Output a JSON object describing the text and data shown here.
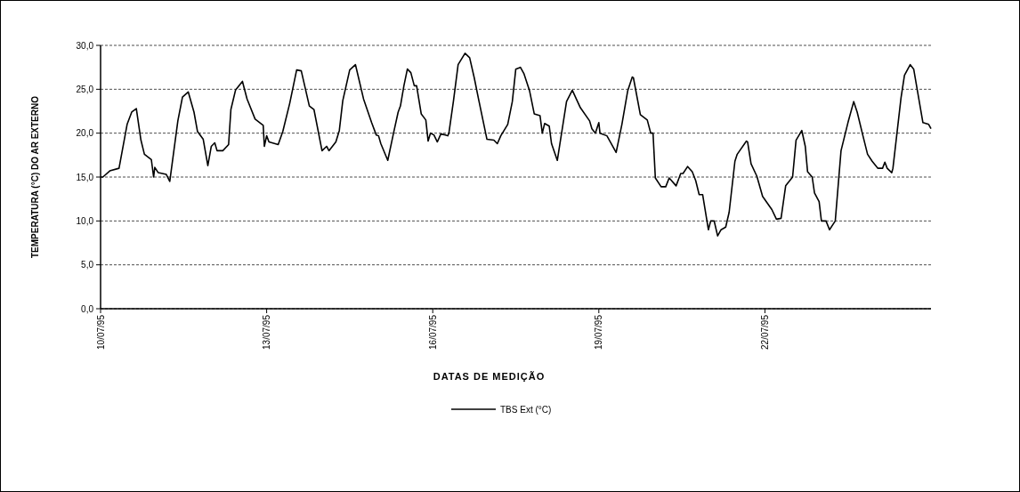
{
  "chart_data": {
    "type": "line",
    "xlabel": "DATAS DE MEDIÇÃO",
    "ylabel": "TEMPERATURA (°C) DO AR EXTERNO",
    "x": [
      "1995-07-10T00:00",
      "1995-07-10T01:00",
      "1995-07-10T04:00",
      "1995-07-10T08:00",
      "1995-07-10T11:30",
      "1995-07-10T13:30",
      "1995-07-10T15:30",
      "1995-07-10T17:30",
      "1995-07-10T19:00",
      "1995-07-10T22:00",
      "1995-07-10T23:00",
      "1995-07-10T23:30",
      "1995-07-11T01:00",
      "1995-07-11T04:30",
      "1995-07-11T06:00",
      "1995-07-11T09:30",
      "1995-07-11T11:30",
      "1995-07-11T14:00",
      "1995-07-11T16:30",
      "1995-07-11T18:00",
      "1995-07-11T20:30",
      "1995-07-11T22:30",
      "1995-07-12T00:00",
      "1995-07-12T01:30",
      "1995-07-12T02:30",
      "1995-07-12T05:00",
      "1995-07-12T07:30",
      "1995-07-12T08:30",
      "1995-07-12T10:30",
      "1995-07-12T13:30",
      "1995-07-12T15:30",
      "1995-07-12T19:00",
      "1995-07-12T22:30",
      "1995-07-12T23:00",
      "1995-07-13T00:00",
      "1995-07-13T01:00",
      "1995-07-13T05:00",
      "1995-07-13T07:00",
      "1995-07-13T10:00",
      "1995-07-13T13:00",
      "1995-07-13T15:00",
      "1995-07-13T18:30",
      "1995-07-13T20:30",
      "1995-07-14T00:00",
      "1995-07-14T02:00",
      "1995-07-14T03:00",
      "1995-07-14T06:00",
      "1995-07-14T07:30",
      "1995-07-14T09:00",
      "1995-07-14T12:00",
      "1995-07-14T14:30",
      "1995-07-14T18:00",
      "1995-07-14T21:30",
      "1995-07-14T23:30",
      "1995-07-15T00:30",
      "1995-07-15T01:30",
      "1995-07-15T04:30",
      "1995-07-15T07:00",
      "1995-07-15T09:00",
      "1995-07-15T10:00",
      "1995-07-15T11:30",
      "1995-07-15T13:00",
      "1995-07-15T14:30",
      "1995-07-15T16:00",
      "1995-07-15T17:00",
      "1995-07-15T19:00",
      "1995-07-15T21:00",
      "1995-07-15T22:00",
      "1995-07-15T23:00",
      "1995-07-16T00:30",
      "1995-07-16T02:00",
      "1995-07-16T03:30",
      "1995-07-16T05:30",
      "1995-07-16T06:30",
      "1995-07-16T07:00",
      "1995-07-16T09:00",
      "1995-07-16T11:00",
      "1995-07-16T14:00",
      "1995-07-16T16:00",
      "1995-07-16T18:00",
      "1995-07-16T20:00",
      "1995-07-16T23:30",
      "1995-07-17T02:30",
      "1995-07-17T04:00",
      "1995-07-17T05:30",
      "1995-07-17T08:30",
      "1995-07-17T10:30",
      "1995-07-17T12:00",
      "1995-07-17T14:00",
      "1995-07-17T15:30",
      "1995-07-17T18:00",
      "1995-07-17T20:00",
      "1995-07-17T22:30",
      "1995-07-17T23:30",
      "1995-07-18T00:30",
      "1995-07-18T02:30",
      "1995-07-18T03:30",
      "1995-07-18T06:00",
      "1995-07-18T10:00",
      "1995-07-18T12:30",
      "1995-07-18T16:00",
      "1995-07-18T20:00",
      "1995-07-18T21:00",
      "1995-07-18T22:30",
      "1995-07-19T00:00",
      "1995-07-19T00:30",
      "1995-07-19T03:30",
      "1995-07-19T05:00",
      "1995-07-19T07:30",
      "1995-07-19T10:00",
      "1995-07-19T12:30",
      "1995-07-19T14:30",
      "1995-07-19T15:00",
      "1995-07-19T18:00",
      "1995-07-19T21:00",
      "1995-07-19T22:30",
      "1995-07-19T23:30",
      "1995-07-20T00:30",
      "1995-07-20T03:00",
      "1995-07-20T05:00",
      "1995-07-20T06:30",
      "1995-07-20T09:30",
      "1995-07-20T11:30",
      "1995-07-20T12:30",
      "1995-07-20T14:30",
      "1995-07-20T16:30",
      "1995-07-20T18:00",
      "1995-07-20T19:30",
      "1995-07-20T21:00",
      "1995-07-20T23:30",
      "1995-07-21T00:30",
      "1995-07-21T02:00",
      "1995-07-21T03:30",
      "1995-07-21T05:00",
      "1995-07-21T07:00",
      "1995-07-21T08:30",
      "1995-07-21T11:00",
      "1995-07-21T12:00",
      "1995-07-21T16:00",
      "1995-07-21T16:30",
      "1995-07-21T18:00",
      "1995-07-21T20:30",
      "1995-07-21T23:00",
      "1995-07-22T03:00",
      "1995-07-22T05:00",
      "1995-07-22T07:00",
      "1995-07-22T09:00",
      "1995-07-22T12:00",
      "1995-07-22T13:30",
      "1995-07-22T16:00",
      "1995-07-22T17:30",
      "1995-07-22T18:30",
      "1995-07-22T20:30",
      "1995-07-22T21:30",
      "1995-07-22T23:30",
      "1995-07-23T00:30",
      "1995-07-23T02:30",
      "1995-07-23T04:00",
      "1995-07-23T06:30",
      "1995-07-23T09:00",
      "1995-07-23T12:00",
      "1995-07-23T14:30",
      "1995-07-23T16:00",
      "1995-07-23T18:30",
      "1995-07-23T20:30",
      "1995-07-23T22:30",
      "1995-07-24T01:00",
      "1995-07-24T03:00",
      "1995-07-24T04:00",
      "1995-07-24T05:00",
      "1995-07-24T07:00",
      "1995-07-24T07:30",
      "1995-07-24T11:00",
      "1995-07-24T12:30",
      "1995-07-24T15:00",
      "1995-07-24T16:30",
      "1995-07-24T20:30",
      "1995-07-24T23:00",
      "1995-07-25T00:00"
    ],
    "series": [
      {
        "name": "TBS Ext (°C)",
        "color": "#000000",
        "values": [
          15.0,
          15.0,
          15.7,
          16.0,
          21.0,
          22.4,
          22.8,
          19.2,
          17.6,
          17.0,
          15.0,
          16.1,
          15.5,
          15.3,
          14.5,
          21.4,
          24.1,
          24.7,
          22.4,
          20.2,
          19.3,
          16.3,
          18.5,
          18.9,
          18.0,
          18.0,
          18.7,
          22.7,
          24.9,
          25.9,
          23.9,
          21.6,
          20.9,
          18.5,
          19.7,
          19.0,
          18.7,
          20.2,
          23.4,
          27.2,
          27.1,
          23.1,
          22.7,
          18.0,
          18.5,
          18.0,
          19.0,
          20.3,
          23.7,
          27.2,
          27.8,
          23.9,
          21.2,
          19.8,
          19.7,
          18.8,
          16.9,
          20.0,
          22.4,
          23.1,
          25.4,
          27.3,
          26.9,
          25.4,
          25.4,
          22.2,
          21.5,
          19.1,
          20.0,
          19.8,
          19.0,
          19.9,
          19.8,
          19.7,
          20.0,
          23.7,
          27.8,
          29.1,
          28.6,
          26.3,
          23.7,
          19.3,
          19.2,
          18.8,
          19.7,
          21.0,
          23.6,
          27.3,
          27.5,
          26.8,
          24.8,
          22.2,
          22.0,
          20.0,
          21.1,
          20.8,
          18.8,
          16.9,
          23.6,
          24.9,
          22.9,
          21.4,
          20.5,
          20.0,
          21.2,
          20.0,
          19.7,
          19.0,
          17.8,
          21.0,
          24.8,
          26.4,
          26.3,
          22.1,
          21.5,
          20.0,
          20.0,
          14.9,
          13.9,
          13.9,
          14.9,
          14.0,
          15.4,
          15.4,
          16.2,
          15.6,
          14.6,
          13.0,
          13.0,
          9.0,
          10.0,
          10.0,
          8.3,
          9.0,
          9.3,
          11.0,
          16.8,
          17.6,
          19.1,
          19.0,
          16.5,
          15.1,
          12.8,
          11.3,
          10.2,
          10.3,
          14.0,
          15.0,
          19.2,
          20.3,
          18.5,
          15.6,
          15.0,
          13.2,
          12.2,
          10.0,
          10.0,
          9.0,
          10.0,
          18.0,
          21.2,
          23.6,
          22.4,
          19.7,
          17.6,
          16.8,
          16.0,
          16.0,
          16.7,
          16.0,
          15.5,
          16.0,
          24.0,
          26.6,
          27.8,
          27.3,
          21.2,
          21.0,
          20.5
        ]
      }
    ],
    "xlim": [
      "1995-07-10",
      "1995-07-25"
    ],
    "xticks": [
      {
        "value": "1995-07-10",
        "label": "10/07/95"
      },
      {
        "value": "1995-07-13",
        "label": "13/07/95"
      },
      {
        "value": "1995-07-16",
        "label": "16/07/95"
      },
      {
        "value": "1995-07-19",
        "label": "19/07/95"
      },
      {
        "value": "1995-07-22",
        "label": "22/07/95"
      }
    ],
    "ylim": [
      0,
      30
    ],
    "yticks": [
      {
        "value": 0,
        "label": "0,0"
      },
      {
        "value": 5,
        "label": "5,0"
      },
      {
        "value": 10,
        "label": "10,0"
      },
      {
        "value": 15,
        "label": "15,0"
      },
      {
        "value": 20,
        "label": "20,0"
      },
      {
        "value": 25,
        "label": "25,0"
      },
      {
        "value": 30,
        "label": "30,0"
      }
    ],
    "grid": "y",
    "legend": "bottom",
    "marker": "none",
    "line_style": "solid"
  }
}
